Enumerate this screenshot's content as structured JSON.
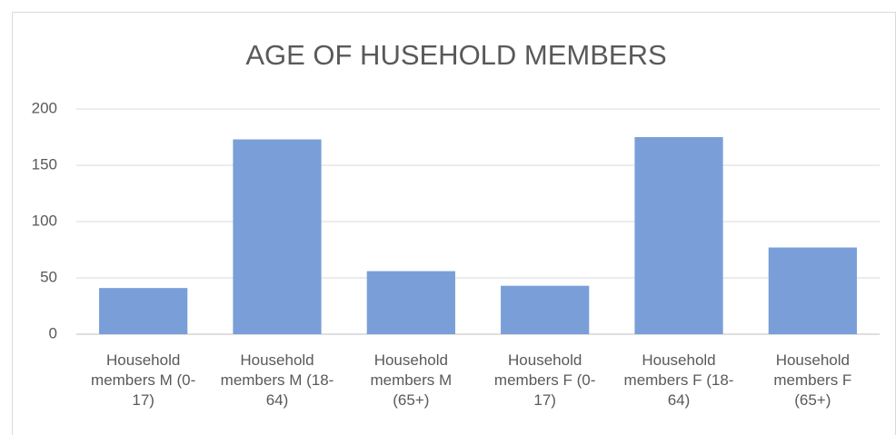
{
  "chart_data": {
    "type": "bar",
    "title": "AGE OF HUSEHOLD MEMBERS",
    "categories": [
      "Household members M (0-17)",
      "Household members M (18-64)",
      "Household members M (65+)",
      "Household members F (0-17)",
      "Household members F (18-64)",
      "Household members F (65+)"
    ],
    "values": [
      41,
      173,
      56,
      43,
      175,
      77
    ],
    "color": "#7a9fd8",
    "ylim": [
      0,
      200
    ],
    "yticks": [
      0,
      50,
      100,
      150,
      200
    ],
    "grid": true
  }
}
